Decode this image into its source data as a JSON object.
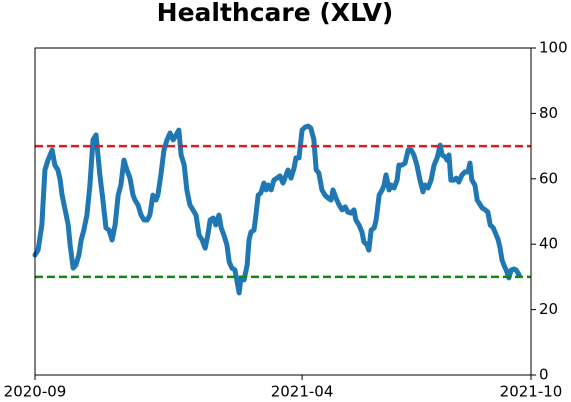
{
  "chart_data": {
    "type": "line",
    "title": "Healthcare (XLV)",
    "xlim": [
      0,
      13
    ],
    "xticks": [
      {
        "value": 0,
        "label": "2020-09"
      },
      {
        "value": 7,
        "label": "2021-04"
      },
      {
        "value": 13,
        "label": "2021-10"
      }
    ],
    "ylim": [
      0,
      100
    ],
    "yticks": [
      0,
      20,
      40,
      60,
      80,
      100
    ],
    "y_axis_side": "right",
    "reference_lines": [
      {
        "value": 70,
        "color": "#e41a1c"
      },
      {
        "value": 30,
        "color": "#118811"
      }
    ],
    "series": [
      {
        "color": "#1f77b4",
        "x": [
          0.0,
          0.08,
          0.18,
          0.26,
          0.34,
          0.45,
          0.52,
          0.6,
          0.66,
          0.71,
          0.79,
          0.87,
          0.92,
          1.0,
          1.07,
          1.15,
          1.21,
          1.28,
          1.36,
          1.44,
          1.52,
          1.6,
          1.65,
          1.7,
          1.78,
          1.86,
          1.94,
          2.02,
          2.1,
          2.18,
          2.25,
          2.33,
          2.41,
          2.49,
          2.57,
          2.62,
          2.7,
          2.78,
          2.86,
          2.94,
          3.01,
          3.09,
          3.17,
          3.22,
          3.3,
          3.38,
          3.46,
          3.54,
          3.62,
          3.7,
          3.77,
          3.83,
          3.91,
          3.98,
          4.06,
          4.14,
          4.22,
          4.3,
          4.38,
          4.46,
          4.53,
          4.59,
          4.67,
          4.74,
          4.82,
          4.88,
          4.95,
          5.03,
          5.09,
          5.16,
          5.24,
          5.29,
          5.35,
          5.4,
          5.48,
          5.56,
          5.61,
          5.66,
          5.74,
          5.79,
          5.85,
          5.92,
          6.0,
          6.06,
          6.11,
          6.19,
          6.26,
          6.34,
          6.42,
          6.5,
          6.55,
          6.63,
          6.71,
          6.79,
          6.84,
          6.92,
          7.0,
          7.08,
          7.16,
          7.23,
          7.31,
          7.37,
          7.44,
          7.52,
          7.6,
          7.68,
          7.76,
          7.81,
          7.89,
          7.97,
          8.05,
          8.13,
          8.2,
          8.28,
          8.36,
          8.41,
          8.49,
          8.57,
          8.62,
          8.7,
          8.75,
          8.81,
          8.89,
          8.94,
          9.02,
          9.1,
          9.15,
          9.2,
          9.28,
          9.33,
          9.41,
          9.49,
          9.54,
          9.62,
          9.7,
          9.78,
          9.86,
          9.93,
          10.01,
          10.09,
          10.17,
          10.22,
          10.3,
          10.38,
          10.46,
          10.54,
          10.62,
          10.67,
          10.75,
          10.8,
          10.85,
          10.9,
          10.98,
          11.04,
          11.11,
          11.19,
          11.27,
          11.35,
          11.4,
          11.45,
          11.53,
          11.59,
          11.64,
          11.72,
          11.8,
          11.87,
          11.93,
          12.01,
          12.09,
          12.14,
          12.19,
          12.24,
          12.29,
          12.35,
          12.42,
          12.48,
          12.56,
          12.61,
          12.69
        ],
        "values": [
          36.7,
          38.2,
          45.9,
          62.7,
          65.7,
          68.8,
          64.2,
          62.7,
          59.6,
          55.0,
          50.5,
          45.9,
          39.8,
          32.7,
          33.6,
          36.7,
          41.3,
          44.3,
          48.9,
          58.1,
          71.9,
          73.4,
          67.3,
          61.2,
          53.5,
          45.0,
          44.3,
          41.3,
          45.9,
          55.0,
          58.1,
          65.7,
          62.7,
          60.2,
          55.0,
          53.5,
          52.0,
          48.9,
          47.4,
          47.4,
          48.9,
          55.0,
          53.5,
          55.0,
          61.2,
          68.8,
          71.9,
          74.0,
          71.9,
          73.4,
          74.9,
          67.3,
          64.2,
          56.6,
          52.0,
          50.5,
          48.9,
          42.8,
          41.3,
          38.8,
          42.8,
          47.4,
          48.0,
          45.9,
          48.9,
          45.0,
          42.8,
          39.8,
          34.6,
          32.7,
          32.1,
          29.1,
          25.1,
          29.7,
          29.1,
          33.6,
          41.3,
          43.7,
          44.3,
          48.9,
          55.0,
          55.7,
          58.7,
          56.6,
          58.1,
          56.6,
          59.6,
          60.2,
          60.9,
          58.7,
          60.2,
          62.7,
          60.2,
          63.3,
          66.4,
          66.4,
          74.9,
          75.8,
          76.1,
          75.5,
          71.9,
          62.7,
          61.8,
          56.6,
          55.0,
          54.1,
          53.5,
          56.6,
          54.1,
          52.0,
          50.5,
          51.4,
          49.8,
          49.5,
          50.5,
          47.4,
          45.9,
          43.7,
          40.7,
          39.8,
          38.2,
          44.3,
          45.0,
          47.4,
          55.0,
          56.6,
          58.1,
          61.2,
          56.6,
          58.1,
          57.2,
          59.6,
          64.2,
          64.2,
          64.8,
          68.8,
          68.8,
          67.3,
          64.2,
          59.6,
          56.0,
          58.1,
          57.2,
          59.6,
          64.2,
          66.4,
          70.3,
          67.3,
          66.7,
          65.7,
          67.3,
          59.6,
          59.6,
          60.2,
          59.0,
          61.2,
          62.1,
          62.1,
          64.8,
          59.6,
          58.1,
          53.5,
          52.6,
          51.1,
          50.5,
          49.8,
          45.9,
          45.0,
          42.8,
          41.3,
          38.8,
          35.2,
          33.6,
          32.1,
          29.7,
          32.1,
          32.4,
          32.1,
          30.6
        ]
      }
    ]
  }
}
